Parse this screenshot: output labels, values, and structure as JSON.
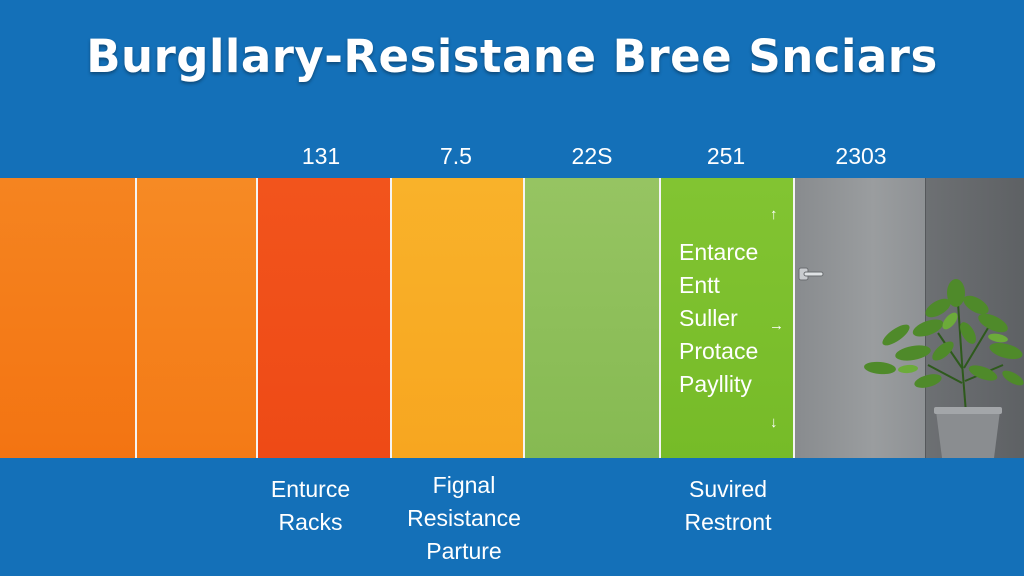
{
  "title": "Burgllary-Resistane Bree Snciars",
  "numbers": [
    "131",
    "7.5",
    "22S",
    "251",
    "2303"
  ],
  "panel_text": [
    "Entarce",
    "Entt",
    "Suller",
    "Protace",
    "Payllity"
  ],
  "labels": {
    "left": [
      "Enturce",
      "Racks"
    ],
    "middle": [
      "Fignal",
      "Resistance",
      "Parture"
    ],
    "right": [
      "Suvired",
      "Restront"
    ]
  },
  "colors": {
    "background": "#1470b8",
    "orange": "#f57a12",
    "red_orange": "#f0501a",
    "yellow_orange": "#f8aa22",
    "light_green": "#8cc05a",
    "bright_green": "#7ec12f",
    "gray": "#7e8184"
  },
  "icons": [
    "arrow-up-icon",
    "arrow-right-icon",
    "arrow-down-icon",
    "door-handle-icon",
    "potted-plant-icon"
  ]
}
